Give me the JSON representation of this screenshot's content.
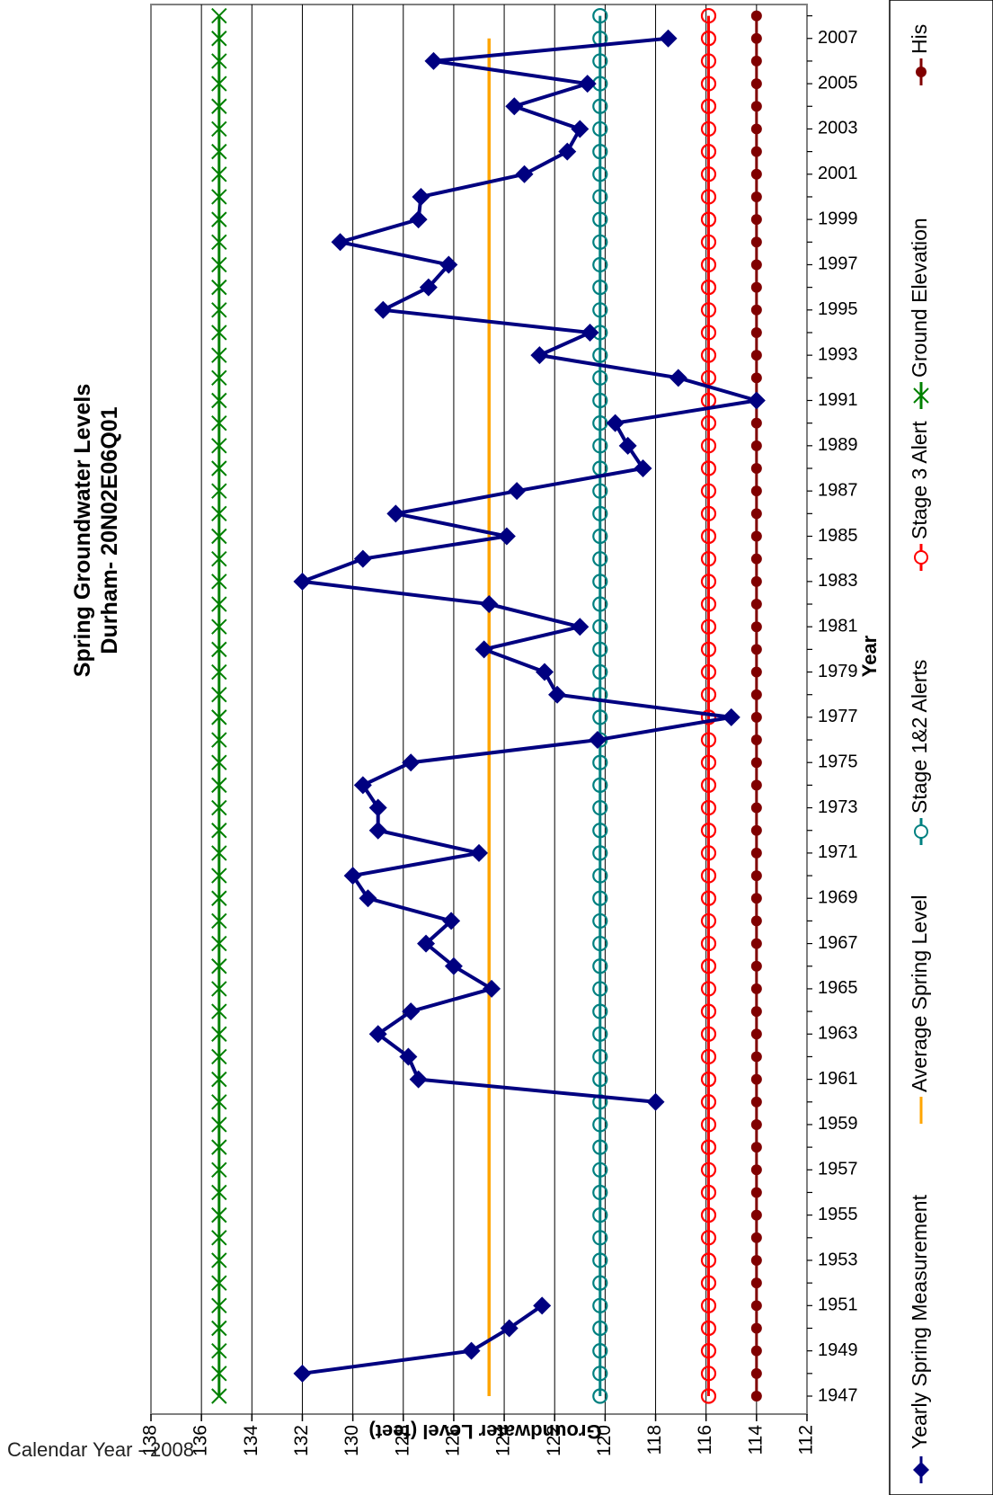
{
  "footer": {
    "caption": "Calendar Year - 2008"
  },
  "chart_data": {
    "type": "line",
    "orientation": "rotated-90-clockwise",
    "title": "Spring Groundwater Levels",
    "subtitle": "Durham- 20N02E06Q01",
    "xlabel": "Year",
    "ylabel": "Groundwater Level (feet)",
    "xlim": [
      1947,
      2008
    ],
    "ylim": [
      112,
      138
    ],
    "y_ticks": [
      112,
      114,
      116,
      118,
      120,
      122,
      124,
      126,
      128,
      130,
      132,
      134,
      136,
      138
    ],
    "x_tick_step": 2,
    "grid": "major y gridlines on",
    "legend_position": "right (rotated)",
    "series": [
      {
        "name": "Yearly Spring Measurement",
        "color": "#000080",
        "marker": "diamond",
        "points": [
          [
            1948,
            132.0
          ],
          [
            1949,
            125.3
          ],
          [
            1950,
            123.8
          ],
          [
            1951,
            122.5
          ],
          [
            1960,
            118.0
          ],
          [
            1961,
            127.4
          ],
          [
            1962,
            127.8
          ],
          [
            1963,
            129.0
          ],
          [
            1964,
            127.7
          ],
          [
            1965,
            124.5
          ],
          [
            1966,
            126.0
          ],
          [
            1967,
            127.1
          ],
          [
            1968,
            126.1
          ],
          [
            1969,
            129.4
          ],
          [
            1970,
            130.0
          ],
          [
            1971,
            125.0
          ],
          [
            1972,
            129.0
          ],
          [
            1973,
            129.0
          ],
          [
            1974,
            129.6
          ],
          [
            1975,
            127.7
          ],
          [
            1976,
            120.3
          ],
          [
            1977,
            115.0
          ],
          [
            1978,
            121.9
          ],
          [
            1979,
            122.4
          ],
          [
            1980,
            124.8
          ],
          [
            1981,
            121.0
          ],
          [
            1982,
            124.6
          ],
          [
            1983,
            132.0
          ],
          [
            1984,
            129.6
          ],
          [
            1985,
            123.9
          ],
          [
            1986,
            128.3
          ],
          [
            1987,
            123.5
          ],
          [
            1988,
            118.5
          ],
          [
            1989,
            119.1
          ],
          [
            1990,
            119.6
          ],
          [
            1991,
            114.0
          ],
          [
            1992,
            117.1
          ],
          [
            1993,
            122.6
          ],
          [
            1994,
            120.6
          ],
          [
            1995,
            128.8
          ],
          [
            1996,
            127.0
          ],
          [
            1997,
            126.2
          ],
          [
            1998,
            130.5
          ],
          [
            1999,
            127.4
          ],
          [
            2000,
            127.3
          ],
          [
            2001,
            123.2
          ],
          [
            2002,
            121.5
          ],
          [
            2003,
            121.0
          ],
          [
            2004,
            123.6
          ],
          [
            2005,
            120.7
          ],
          [
            2006,
            126.8
          ],
          [
            2007,
            117.5
          ]
        ]
      },
      {
        "name": "Average Spring Level",
        "color": "#FFA500",
        "marker": "none",
        "value": 124.6
      },
      {
        "name": "Stage 1&2 Alerts",
        "color": "#008080",
        "marker": "open-circle",
        "value": 120.2
      },
      {
        "name": "Stage 3 Alert",
        "color": "#FF0000",
        "marker": "open-circle",
        "value": 115.9
      },
      {
        "name": "Ground Elevation",
        "color": "#008000",
        "marker": "x",
        "value": 135.3
      },
      {
        "name": "His",
        "color": "#800000",
        "marker": "filled-circle",
        "value": 114.0
      }
    ]
  }
}
